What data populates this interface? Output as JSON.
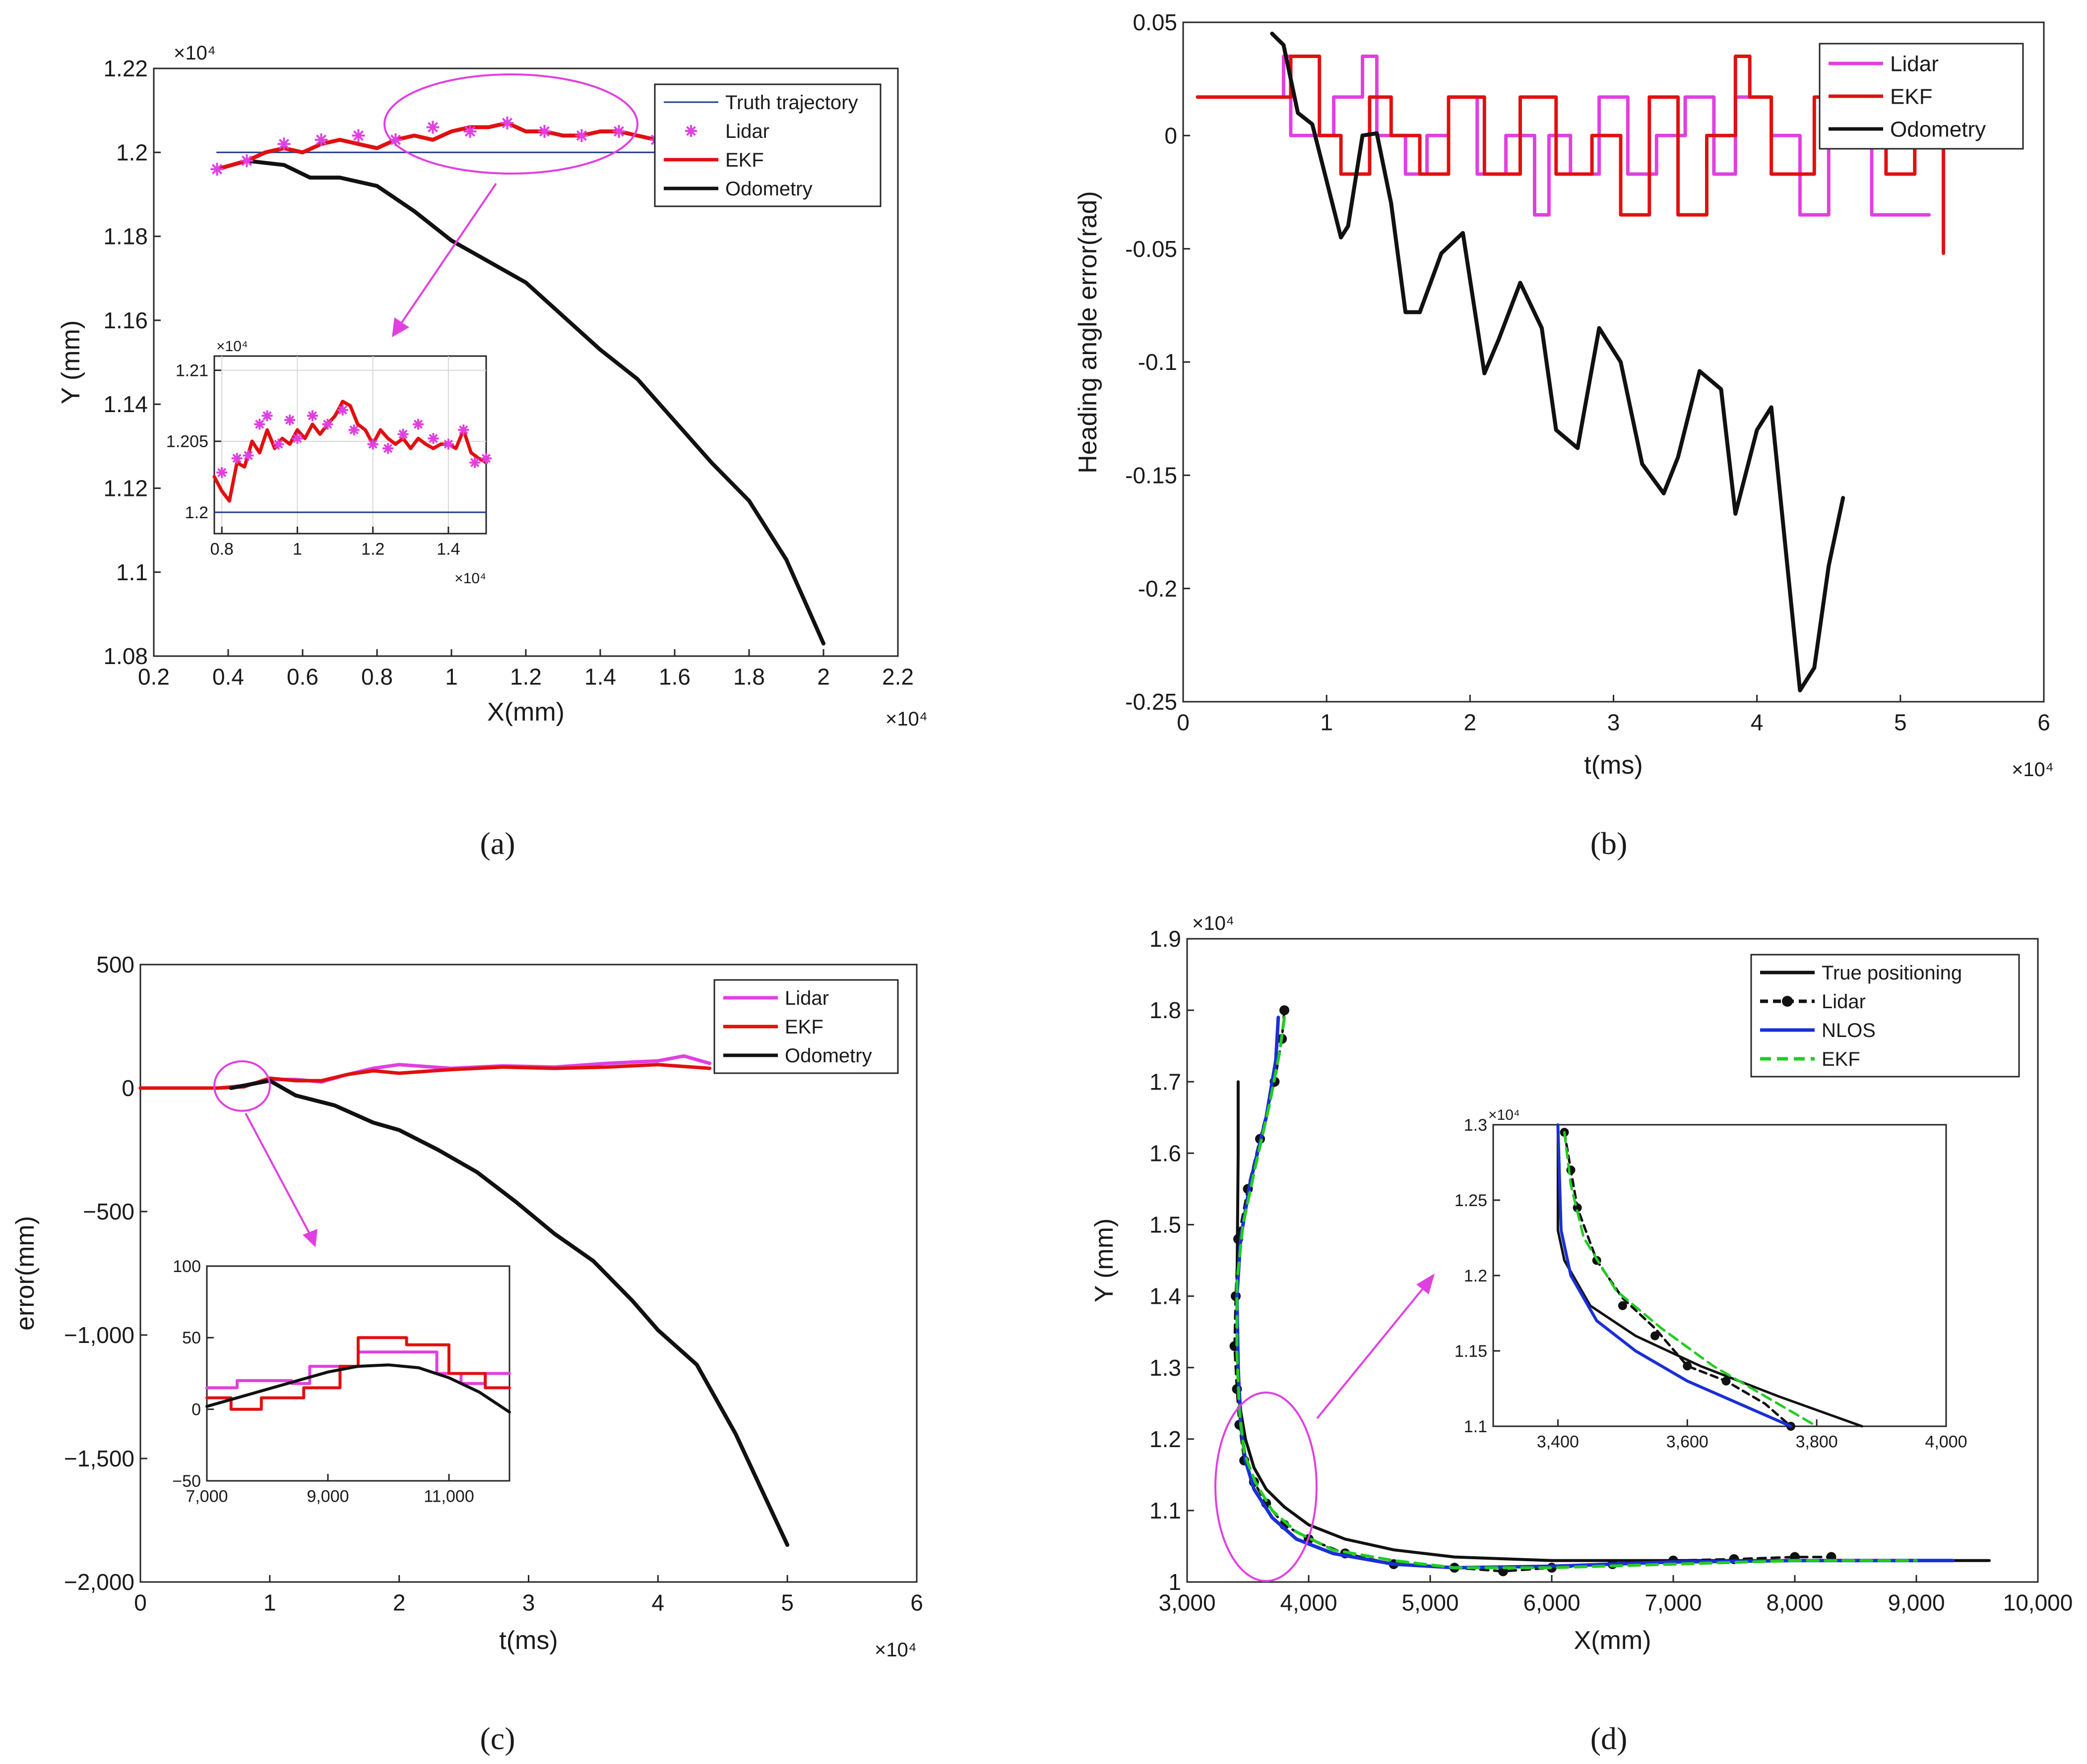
{
  "panels": [
    {
      "id": "a",
      "caption": "(a)",
      "xlabel": "X(mm)",
      "ylabel": "Y (mm)",
      "xexp": "×10⁴",
      "yexp": "×10⁴",
      "xticks": [
        "0.2",
        "0.4",
        "0.6",
        "0.8",
        "1",
        "1.2",
        "1.4",
        "1.6",
        "1.8",
        "2",
        "2.2"
      ],
      "yticks": [
        "1.08",
        "1.1",
        "1.12",
        "1.14",
        "1.16",
        "1.18",
        "1.2",
        "1.22"
      ],
      "legend": [
        "Truth trajectory",
        "Lidar",
        "EKF",
        "Odometry"
      ],
      "inset": {
        "xticks": [
          "0.8",
          "1",
          "1.2",
          "1.4"
        ],
        "yticks": [
          "1.2",
          "1.205",
          "1.21"
        ],
        "xexp": "×10⁴",
        "yexp": "×10⁴"
      }
    },
    {
      "id": "b",
      "caption": "(b)",
      "xlabel": "t(ms)",
      "ylabel": "Heading angle error(rad)",
      "xexp": "×10⁴",
      "xticks": [
        "0",
        "1",
        "2",
        "3",
        "4",
        "5",
        "6"
      ],
      "yticks": [
        "-0.25",
        "-0.2",
        "-0.15",
        "-0.1",
        "-0.05",
        "0",
        "0.05"
      ],
      "legend": [
        "Lidar",
        "EKF",
        "Odometry"
      ]
    },
    {
      "id": "c",
      "caption": "(c)",
      "xlabel": "t(ms)",
      "ylabel": "error(mm)",
      "xexp": "×10⁴",
      "xticks": [
        "0",
        "1",
        "2",
        "3",
        "4",
        "5",
        "6"
      ],
      "yticks": [
        "−2,000",
        "−1,500",
        "−1,000",
        "−500",
        "0",
        "500"
      ],
      "legend": [
        "Lidar",
        "EKF",
        "Odometry"
      ],
      "inset": {
        "xticks": [
          "7,000",
          "9,000",
          "11,000"
        ],
        "yticks": [
          "−50",
          "0",
          "50",
          "100"
        ]
      }
    },
    {
      "id": "d",
      "caption": "(d)",
      "xlabel": "X(mm)",
      "ylabel": "Y (mm)",
      "yexp": "×10⁴",
      "xticks": [
        "3,000",
        "4,000",
        "5,000",
        "6,000",
        "7,000",
        "8,000",
        "9,000",
        "10,000"
      ],
      "yticks": [
        "1",
        "1.1",
        "1.2",
        "1.3",
        "1.4",
        "1.5",
        "1.6",
        "1.7",
        "1.8",
        "1.9"
      ],
      "legend": [
        "True positioning",
        "Lidar",
        "NLOS",
        "EKF"
      ],
      "inset": {
        "xticks": [
          "3,400",
          "3,600",
          "3,800",
          "4,000"
        ],
        "yticks": [
          "1.1",
          "1.15",
          "1.2",
          "1.25",
          "1.3"
        ],
        "yexp": "×10⁴"
      }
    }
  ],
  "colors": {
    "truth": "#1f3b8c",
    "lidar": "#e040e0",
    "ekf": "#e01010",
    "odometry": "#111111",
    "nlos": "#1a2fd6",
    "ekf_green": "#22cc22",
    "annotation": "#e040e0"
  },
  "chart_data": [
    {
      "panel": "a",
      "type": "line",
      "xlim": [
        0.2,
        2.2
      ],
      "ylim": [
        1.08,
        1.22
      ],
      "series": [
        {
          "name": "Truth trajectory",
          "x": [
            0.37,
            1.55
          ],
          "y": [
            1.2,
            1.2
          ]
        },
        {
          "name": "Lidar",
          "x": [
            0.37,
            0.45,
            0.55,
            0.65,
            0.75,
            0.85,
            0.95,
            1.05,
            1.15,
            1.25,
            1.35,
            1.45,
            1.55
          ],
          "y": [
            1.196,
            1.198,
            1.202,
            1.203,
            1.204,
            1.203,
            1.206,
            1.205,
            1.207,
            1.205,
            1.204,
            1.205,
            1.203
          ]
        },
        {
          "name": "EKF",
          "x": [
            0.37,
            0.45,
            0.5,
            0.55,
            0.6,
            0.65,
            0.7,
            0.75,
            0.8,
            0.85,
            0.9,
            0.95,
            1.0,
            1.05,
            1.1,
            1.15,
            1.2,
            1.25,
            1.3,
            1.35,
            1.4,
            1.45,
            1.5,
            1.55
          ],
          "y": [
            1.196,
            1.198,
            1.2,
            1.201,
            1.2,
            1.202,
            1.203,
            1.202,
            1.201,
            1.203,
            1.204,
            1.203,
            1.205,
            1.206,
            1.206,
            1.207,
            1.205,
            1.205,
            1.204,
            1.204,
            1.205,
            1.205,
            1.204,
            1.203
          ]
        },
        {
          "name": "Odometry",
          "x": [
            0.37,
            0.45,
            0.55,
            0.62,
            0.7,
            0.8,
            0.9,
            1.0,
            1.1,
            1.2,
            1.3,
            1.4,
            1.5,
            1.6,
            1.7,
            1.8,
            1.9,
            2.0
          ],
          "y": [
            1.196,
            1.198,
            1.197,
            1.194,
            1.194,
            1.192,
            1.186,
            1.179,
            1.174,
            1.169,
            1.161,
            1.153,
            1.146,
            1.136,
            1.126,
            1.117,
            1.103,
            1.083
          ]
        }
      ]
    },
    {
      "panel": "b",
      "type": "line",
      "xlim": [
        0,
        6
      ],
      "ylim": [
        -0.25,
        0.05
      ],
      "series": [
        {
          "name": "Lidar",
          "x": [
            0.1,
            0.65,
            0.7,
            0.7,
            0.75,
            0.75,
            1.05,
            1.05,
            1.25,
            1.25,
            1.35,
            1.35,
            1.55,
            1.55,
            1.7,
            1.7,
            1.85,
            1.85,
            2.05,
            2.05,
            2.25,
            2.25,
            2.45,
            2.45,
            2.55,
            2.55,
            2.7,
            2.7,
            2.9,
            2.9,
            3.1,
            3.1,
            3.3,
            3.3,
            3.5,
            3.5,
            3.7,
            3.7,
            3.85,
            3.85,
            4.1,
            4.1,
            4.3,
            4.3,
            4.5,
            4.5,
            4.8,
            4.8,
            5.2
          ],
          "y": [
            0.017,
            0.017,
            0.017,
            0.035,
            0.035,
            0.0,
            0.0,
            0.017,
            0.017,
            0.035,
            0.035,
            0.0,
            0.0,
            -0.017,
            -0.017,
            0.0,
            0.0,
            0.017,
            0.017,
            -0.017,
            -0.017,
            0.0,
            0.0,
            -0.035,
            -0.035,
            0.0,
            0.0,
            -0.017,
            -0.017,
            0.017,
            0.017,
            -0.017,
            -0.017,
            0.0,
            0.0,
            0.017,
            0.017,
            -0.017,
            -0.017,
            0.017,
            0.017,
            0.0,
            0.0,
            -0.035,
            -0.035,
            0.0,
            0.0,
            -0.035,
            -0.035
          ]
        },
        {
          "name": "EKF",
          "x": [
            0.1,
            0.75,
            0.75,
            0.95,
            0.95,
            1.1,
            1.1,
            1.3,
            1.3,
            1.45,
            1.45,
            1.65,
            1.65,
            1.85,
            1.85,
            2.1,
            2.1,
            2.35,
            2.35,
            2.6,
            2.6,
            2.85,
            2.85,
            3.05,
            3.05,
            3.25,
            3.25,
            3.45,
            3.45,
            3.65,
            3.65,
            3.85,
            3.85,
            3.95,
            3.95,
            4.1,
            4.1,
            4.4,
            4.4,
            4.6,
            4.6,
            4.9,
            4.9,
            5.1,
            5.1,
            5.3,
            5.3
          ],
          "y": [
            0.017,
            0.017,
            0.035,
            0.035,
            0.0,
            0.0,
            -0.017,
            -0.017,
            0.017,
            0.017,
            0.0,
            0.0,
            -0.017,
            -0.017,
            0.017,
            0.017,
            -0.017,
            -0.017,
            0.017,
            0.017,
            -0.017,
            -0.017,
            0.0,
            0.0,
            -0.035,
            -0.035,
            0.017,
            0.017,
            -0.035,
            -0.035,
            0.0,
            0.0,
            0.035,
            0.035,
            0.017,
            0.017,
            -0.017,
            -0.017,
            0.017,
            0.017,
            0.0,
            0.0,
            -0.017,
            -0.017,
            0.017,
            0.017,
            -0.052
          ]
        },
        {
          "name": "Odometry",
          "x": [
            0.62,
            0.7,
            0.8,
            0.9,
            1.0,
            1.1,
            1.15,
            1.25,
            1.35,
            1.45,
            1.55,
            1.65,
            1.8,
            1.95,
            2.1,
            2.2,
            2.35,
            2.5,
            2.6,
            2.75,
            2.9,
            3.05,
            3.2,
            3.35,
            3.45,
            3.6,
            3.75,
            3.85,
            4.0,
            4.1,
            4.3,
            4.4,
            4.5,
            4.6
          ],
          "y": [
            0.045,
            0.04,
            0.01,
            0.005,
            -0.02,
            -0.045,
            -0.04,
            0.0,
            0.001,
            -0.03,
            -0.078,
            -0.078,
            -0.052,
            -0.043,
            -0.105,
            -0.09,
            -0.065,
            -0.085,
            -0.13,
            -0.138,
            -0.085,
            -0.1,
            -0.145,
            -0.158,
            -0.142,
            -0.104,
            -0.112,
            -0.167,
            -0.13,
            -0.12,
            -0.245,
            -0.235,
            -0.19,
            -0.16
          ]
        }
      ]
    },
    {
      "panel": "c",
      "type": "line",
      "xlim": [
        0,
        6
      ],
      "ylim": [
        -2000,
        500
      ],
      "series": [
        {
          "name": "Lidar",
          "x": [
            0,
            0.6,
            0.8,
            1.0,
            1.2,
            1.4,
            1.6,
            1.8,
            2.0,
            2.4,
            2.8,
            3.2,
            3.6,
            4.0,
            4.2,
            4.4
          ],
          "y": [
            0,
            0,
            10,
            35,
            35,
            25,
            55,
            80,
            95,
            80,
            90,
            85,
            100,
            110,
            130,
            100
          ]
        },
        {
          "name": "EKF",
          "x": [
            0,
            0.6,
            0.8,
            1.0,
            1.2,
            1.4,
            1.6,
            1.8,
            2.0,
            2.4,
            2.8,
            3.2,
            3.6,
            4.0,
            4.4
          ],
          "y": [
            0,
            0,
            5,
            40,
            30,
            30,
            55,
            70,
            60,
            75,
            85,
            80,
            85,
            95,
            80
          ]
        },
        {
          "name": "Odometry",
          "x": [
            0.7,
            0.9,
            1.0,
            1.2,
            1.5,
            1.8,
            2.0,
            2.3,
            2.6,
            2.9,
            3.2,
            3.5,
            3.8,
            4.0,
            4.3,
            4.6,
            5.0
          ],
          "y": [
            0,
            20,
            30,
            -30,
            -70,
            -140,
            -170,
            -250,
            -340,
            -460,
            -590,
            -700,
            -860,
            -980,
            -1120,
            -1400,
            -1850
          ]
        }
      ]
    },
    {
      "panel": "d",
      "type": "line",
      "xlim": [
        3000,
        10000
      ],
      "ylim": [
        1.0,
        1.9
      ],
      "series": [
        {
          "name": "True positioning",
          "x": [
            3420,
            3420,
            3410,
            3420,
            3440,
            3480,
            3550,
            3650,
            3800,
            4000,
            4300,
            4700,
            5200,
            6000,
            7000,
            8000,
            9000,
            9600
          ],
          "y": [
            1.7,
            1.6,
            1.4,
            1.3,
            1.24,
            1.2,
            1.16,
            1.13,
            1.105,
            1.08,
            1.06,
            1.045,
            1.035,
            1.03,
            1.03,
            1.03,
            1.03,
            1.03
          ]
        },
        {
          "name": "Lidar",
          "x": [
            3800,
            3780,
            3720,
            3600,
            3500,
            3420,
            3400,
            3390,
            3410,
            3430,
            3470,
            3550,
            3650,
            3800,
            4000,
            4300,
            4700,
            5200,
            5600,
            6000,
            6500,
            7000,
            7500,
            8000,
            8300
          ],
          "y": [
            1.8,
            1.76,
            1.7,
            1.62,
            1.55,
            1.48,
            1.4,
            1.33,
            1.27,
            1.22,
            1.17,
            1.14,
            1.11,
            1.08,
            1.06,
            1.04,
            1.025,
            1.02,
            1.015,
            1.02,
            1.025,
            1.03,
            1.032,
            1.035,
            1.035
          ]
        },
        {
          "name": "NLOS",
          "x": [
            3750,
            3730,
            3650,
            3520,
            3440,
            3410,
            3420,
            3440,
            3480,
            3550,
            3700,
            3900,
            4200,
            4700,
            5200,
            6000,
            7000,
            8000,
            9300
          ],
          "y": [
            1.79,
            1.73,
            1.65,
            1.56,
            1.48,
            1.4,
            1.3,
            1.22,
            1.17,
            1.13,
            1.09,
            1.06,
            1.04,
            1.025,
            1.02,
            1.022,
            1.028,
            1.03,
            1.03
          ]
        },
        {
          "name": "EKF",
          "x": [
            3800,
            3760,
            3680,
            3560,
            3460,
            3410,
            3410,
            3430,
            3470,
            3560,
            3700,
            3900,
            4200,
            4700,
            5200,
            6000,
            7000,
            8000,
            9000
          ],
          "y": [
            1.79,
            1.74,
            1.67,
            1.58,
            1.5,
            1.42,
            1.32,
            1.24,
            1.18,
            1.14,
            1.1,
            1.07,
            1.045,
            1.03,
            1.02,
            1.02,
            1.025,
            1.03,
            1.03
          ]
        }
      ]
    }
  ]
}
